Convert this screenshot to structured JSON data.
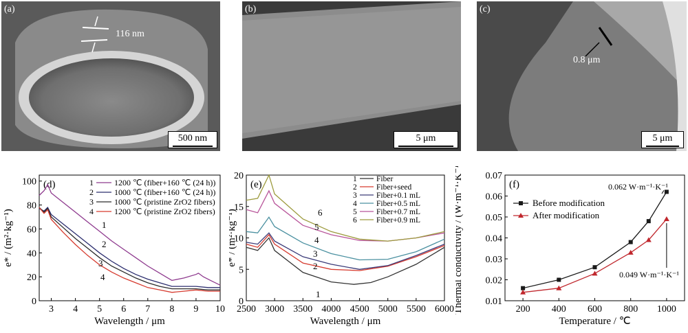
{
  "sem_panels": [
    {
      "tag": "(a)",
      "annotation": "116 nm",
      "scalebar": "500 nm"
    },
    {
      "tag": "(b)",
      "annotation": "",
      "scalebar": "5 μm"
    },
    {
      "tag": "(c)",
      "annotation": "0.8 μm",
      "scalebar": "5 μm"
    }
  ],
  "chart_data": [
    {
      "panel": "(d)",
      "type": "line",
      "xlabel": "Wavelength / μm",
      "ylabel": "e* / (m²·kg⁻¹)",
      "xlim": [
        2.5,
        10
      ],
      "ylim": [
        0,
        105
      ],
      "xticks": [
        3,
        4,
        5,
        6,
        7,
        8,
        9,
        10
      ],
      "yticks": [
        0,
        20,
        40,
        60,
        80,
        100
      ],
      "legend_position": "top-right",
      "series": [
        {
          "name": "1200 ℃ (fiber+160 ℃ (24 h))",
          "label": "1",
          "color": "#8e3a8e",
          "x": [
            2.5,
            2.7,
            2.85,
            3.0,
            3.5,
            4.0,
            4.5,
            5.0,
            5.5,
            6.0,
            6.5,
            7.0,
            7.5,
            8.0,
            8.5,
            9.0,
            9.1,
            9.3,
            9.6,
            10.0
          ],
          "y": [
            88,
            92,
            97,
            90,
            82,
            74,
            66,
            58,
            50,
            43,
            36,
            29,
            23,
            17,
            19,
            22,
            23,
            20,
            17,
            13
          ]
        },
        {
          "name": "1000 ℃ (fiber+160 ℃ (24 h))",
          "label": "2",
          "color": "#2b2d6e",
          "x": [
            2.5,
            2.7,
            2.85,
            3.0,
            3.5,
            4.0,
            4.5,
            5.0,
            5.5,
            6.0,
            6.5,
            7.0,
            7.5,
            8.0,
            8.5,
            9.0,
            9.5,
            10.0
          ],
          "y": [
            77,
            75,
            78,
            72,
            64,
            56,
            48,
            40,
            33,
            27,
            22,
            18,
            15,
            12,
            12,
            12,
            11,
            11
          ]
        },
        {
          "name": "1000 ℃ (pristine ZrO2 fibers)",
          "label": "3",
          "color": "#2a2a2a",
          "x": [
            2.5,
            2.7,
            2.85,
            3.0,
            3.5,
            4.0,
            4.5,
            5.0,
            5.5,
            6.0,
            6.5,
            7.0,
            7.5,
            8.0,
            8.5,
            9.0,
            9.5,
            10.0
          ],
          "y": [
            78,
            74,
            77,
            70,
            61,
            52,
            44,
            36,
            29,
            24,
            19,
            15,
            12,
            10,
            10,
            10,
            9,
            9
          ]
        },
        {
          "name": "1200 ℃ (pristine ZrO2 fibers)",
          "label": "4",
          "color": "#d63a2e",
          "x": [
            2.5,
            2.7,
            2.85,
            3.0,
            3.5,
            4.0,
            4.5,
            5.0,
            5.5,
            6.0,
            6.5,
            7.0,
            7.5,
            8.0,
            8.5,
            9.0,
            9.5,
            10.0
          ],
          "y": [
            78,
            73,
            76,
            68,
            57,
            47,
            38,
            30,
            24,
            19,
            15,
            11,
            9,
            7,
            8,
            9,
            8,
            8
          ]
        }
      ]
    },
    {
      "panel": "(e)",
      "type": "line",
      "xlabel": "Wavelength / μm",
      "ylabel": "e* / (m²·kg⁻¹)",
      "xlim": [
        2500,
        6000
      ],
      "ylim": [
        0,
        20
      ],
      "xticks": [
        2500,
        3000,
        3500,
        4000,
        4500,
        5000,
        5500,
        6000
      ],
      "yticks": [
        0,
        5,
        10,
        15,
        20
      ],
      "legend_position": "top-right",
      "series": [
        {
          "name": "Fiber",
          "label": "1",
          "color": "#333333",
          "x": [
            2500,
            2700,
            2900,
            3000,
            3500,
            4000,
            4400,
            4700,
            5000,
            5500,
            6000
          ],
          "y": [
            8.5,
            8.0,
            10.0,
            8.0,
            4.5,
            3.0,
            2.6,
            2.9,
            3.8,
            5.8,
            8.5
          ]
        },
        {
          "name": "Fiber+seed",
          "label": "2",
          "color": "#d63a2e",
          "x": [
            2500,
            2700,
            2900,
            3000,
            3500,
            4000,
            4500,
            5000,
            5500,
            6000
          ],
          "y": [
            9.0,
            8.5,
            10.5,
            9.0,
            6.0,
            5.0,
            4.8,
            5.5,
            7.0,
            8.8
          ]
        },
        {
          "name": "Fiber+0.1 mL",
          "label": "3",
          "color": "#3a3a78",
          "x": [
            2500,
            2700,
            2900,
            3000,
            3500,
            4000,
            4500,
            5000,
            5500,
            6000
          ],
          "y": [
            9.3,
            9.0,
            10.8,
            9.5,
            7.0,
            5.8,
            5.0,
            5.6,
            7.2,
            9.0
          ]
        },
        {
          "name": "Fiber+0.5 mL",
          "label": "4",
          "color": "#4a90a0",
          "x": [
            2500,
            2700,
            2900,
            3000,
            3500,
            4000,
            4500,
            5000,
            5500,
            6000
          ],
          "y": [
            11.0,
            10.8,
            13.3,
            11.8,
            9.2,
            7.5,
            6.5,
            6.6,
            7.8,
            9.8
          ]
        },
        {
          "name": "Fiber+0.7 mL",
          "label": "5",
          "color": "#b8559a",
          "x": [
            2500,
            2700,
            2900,
            3000,
            3500,
            4000,
            4500,
            5000,
            5500,
            6000
          ],
          "y": [
            14.5,
            14.0,
            17.5,
            15.5,
            12.0,
            10.5,
            9.6,
            9.5,
            10.0,
            10.8
          ]
        },
        {
          "name": "Fiber+0.9 mL",
          "label": "6",
          "color": "#9c9a3c",
          "x": [
            2500,
            2700,
            2900,
            3000,
            3500,
            4000,
            4500,
            5000,
            5500,
            6000
          ],
          "y": [
            16.0,
            16.3,
            20.0,
            17.0,
            13.0,
            11.0,
            9.8,
            9.5,
            10.0,
            11.0
          ]
        }
      ]
    },
    {
      "panel": "(f)",
      "type": "line",
      "xlabel": "Temperature / ℃",
      "ylabel": "Thermal conductivity / (W·m⁻¹·K⁻¹)",
      "xlim": [
        100,
        1100
      ],
      "ylim": [
        0.01,
        0.07
      ],
      "xticks": [
        200,
        400,
        600,
        800,
        1000
      ],
      "yticks": [
        0.01,
        0.02,
        0.03,
        0.04,
        0.05,
        0.06,
        0.07
      ],
      "legend_position": "top-left",
      "series": [
        {
          "name": "Before modification",
          "color": "#1a1a1a",
          "marker": "square",
          "x": [
            200,
            400,
            600,
            800,
            900,
            1000
          ],
          "y": [
            0.016,
            0.02,
            0.026,
            0.038,
            0.048,
            0.062
          ]
        },
        {
          "name": "After modification",
          "color": "#c0272d",
          "marker": "triangle",
          "x": [
            200,
            400,
            600,
            800,
            900,
            1000
          ],
          "y": [
            0.014,
            0.016,
            0.023,
            0.033,
            0.039,
            0.049
          ]
        }
      ],
      "annotations": [
        "0.062 W·m⁻¹·K⁻¹",
        "0.049 W·m⁻¹·K⁻¹"
      ]
    }
  ],
  "labels": {
    "d_tick_format": "int",
    "e_tick_format": "int",
    "f_tick_format": "fixed2",
    "d_legend": [
      "1200 ℃ (fiber+160 ℃ (24 h))",
      "1000 ℃ (fiber+160 ℃ (24 h))",
      "1000 ℃ (pristine ZrO2 fibers)",
      "1200 ℃ (pristine ZrO2 fibers)"
    ],
    "f_annotation_top": "0.062 W·m⁻¹·K⁻¹",
    "f_annotation_bottom": "0.049 W·m⁻¹·K⁻¹"
  }
}
